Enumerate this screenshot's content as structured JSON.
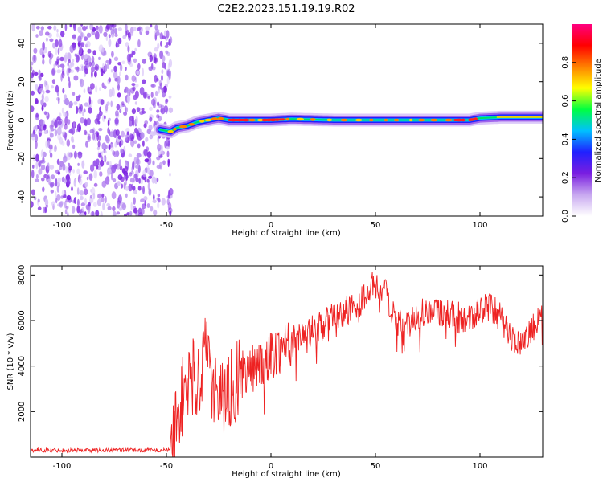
{
  "title": "C2E2.2023.151.19.19.R02",
  "chart_data": [
    {
      "type": "heatmap",
      "description_of_values": "spectrogram of normalized spectral amplitude vs height",
      "xlabel": "Height of straight line (km)",
      "ylabel": "Frequency (Hz)",
      "xlim": [
        -115,
        130
      ],
      "ylim": [
        -50,
        50
      ],
      "xticks": [
        -100,
        -50,
        0,
        50,
        100
      ],
      "yticks": [
        -40,
        -20,
        0,
        20,
        40
      ],
      "noise_region_x": [
        -115,
        -50
      ],
      "signal_track": {
        "x": [
          -53,
          -48,
          -45,
          -40,
          -35,
          -30,
          -25,
          -20,
          -10,
          0,
          10,
          30,
          50,
          70,
          90,
          95,
          100,
          110,
          130
        ],
        "y": [
          -5,
          -6,
          -4,
          -3,
          -1,
          0,
          1,
          0,
          0,
          0,
          0.5,
          0,
          0,
          0,
          0,
          0,
          1,
          1.5,
          1.5
        ]
      },
      "colorbar": {
        "label": "Normalized spectral amplitude",
        "range": [
          0.0,
          1.0
        ],
        "ticks": [
          "0.0",
          "0.2",
          "0.4",
          "0.6",
          "0.8"
        ],
        "colors": [
          "#ffffff",
          "#c8a8f0",
          "#7a1ee0",
          "#2020ff",
          "#00c0ff",
          "#00ff40",
          "#ffff00",
          "#ff8000",
          "#ff0000",
          "#ff0080"
        ]
      }
    },
    {
      "type": "line",
      "xlabel": "Height of straight line (km)",
      "ylabel": "SNR (10 * v/v)",
      "xlim": [
        -115,
        130
      ],
      "ylim": [
        0,
        8400
      ],
      "xticks": [
        -100,
        -50,
        0,
        50,
        100
      ],
      "yticks": [
        2000,
        4000,
        6000,
        8000
      ],
      "grid": false,
      "series": [
        {
          "color": "#ee2222",
          "x": [
            -115,
            -60,
            -48,
            -45,
            -42,
            -38,
            -35,
            -32,
            -30,
            -28,
            -25,
            -22,
            -20,
            -15,
            -10,
            -5,
            0,
            5,
            10,
            15,
            20,
            25,
            30,
            35,
            40,
            45,
            48,
            50,
            55,
            60,
            65,
            70,
            75,
            80,
            85,
            90,
            95,
            100,
            105,
            110,
            115,
            120,
            125,
            130
          ],
          "y": [
            300,
            300,
            300,
            1500,
            2800,
            3600,
            3200,
            4500,
            4000,
            3200,
            2800,
            2600,
            3000,
            3500,
            3800,
            4200,
            4500,
            4800,
            5200,
            5400,
            5600,
            5800,
            6200,
            6400,
            6600,
            7000,
            7600,
            7400,
            7200,
            6000,
            5800,
            6200,
            6500,
            6400,
            6300,
            6200,
            6000,
            6500,
            6600,
            6100,
            5300,
            4800,
            5700,
            6100
          ]
        }
      ]
    }
  ]
}
